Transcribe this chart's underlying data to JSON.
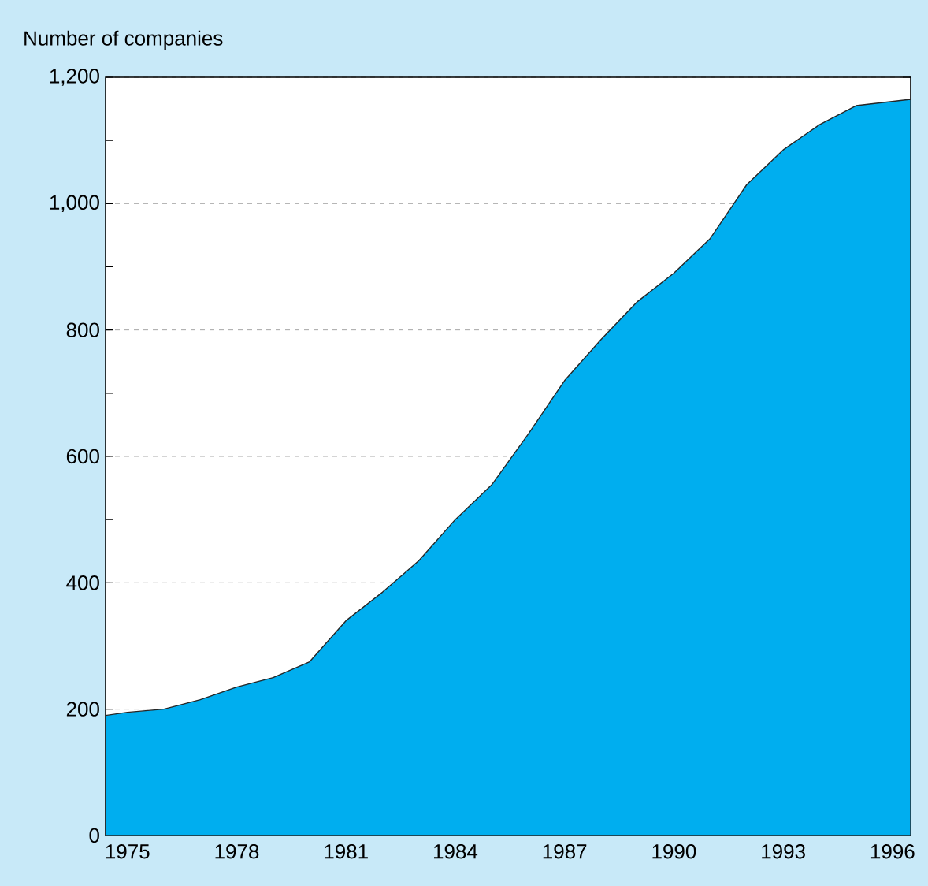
{
  "chart_data": {
    "type": "area",
    "ylabel": "Number of companies",
    "x": [
      1974.4,
      1975,
      1976,
      1977,
      1978,
      1979,
      1980,
      1981,
      1982,
      1983,
      1984,
      1985,
      1986,
      1987,
      1988,
      1989,
      1990,
      1991,
      1992,
      1993,
      1994,
      1995,
      1996.5
    ],
    "series": [
      {
        "color": "#00aeef",
        "values": [
          190,
          195,
          200,
          215,
          235,
          250,
          275,
          340,
          385,
          435,
          500,
          555,
          635,
          720,
          785,
          845,
          890,
          945,
          1030,
          1085,
          1125,
          1155,
          1165
        ]
      }
    ],
    "xlim": [
      1974.4,
      1996.5
    ],
    "xticks": [
      1975,
      1978,
      1981,
      1984,
      1987,
      1990,
      1993,
      1996
    ],
    "ylim": [
      0,
      1200
    ],
    "yticks": [
      0,
      {
        "value": 100,
        "label": null
      },
      200,
      {
        "value": 300,
        "label": null
      },
      400,
      {
        "value": 500,
        "label": null
      },
      600,
      {
        "value": 700,
        "label": null
      },
      800,
      {
        "value": 900,
        "label": null
      },
      {
        "value": 1000,
        "label": "1,000"
      },
      {
        "value": 1100,
        "label": null
      },
      {
        "value": 1200,
        "label": "1,200"
      }
    ],
    "grid": "y"
  }
}
